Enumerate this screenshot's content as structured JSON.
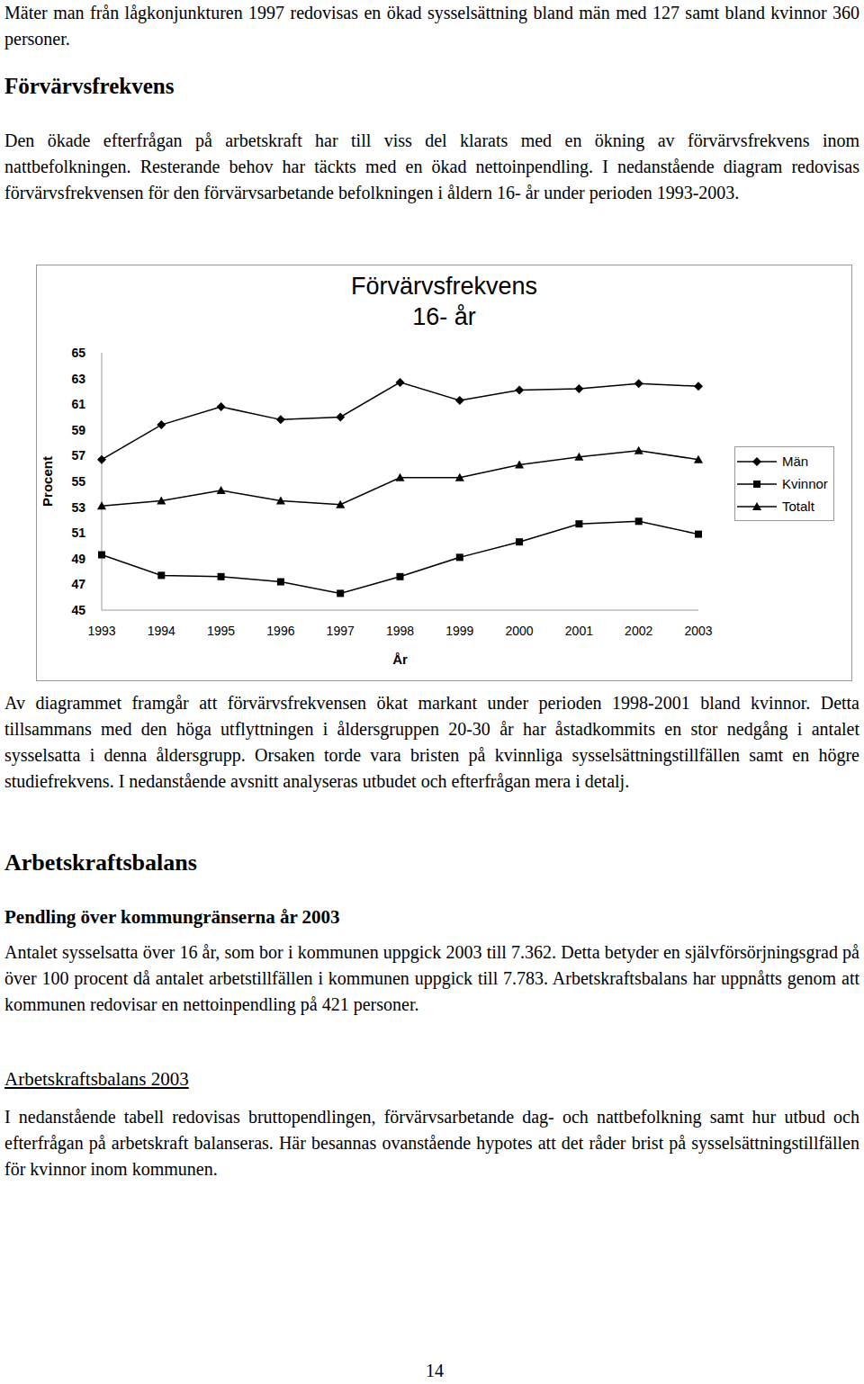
{
  "intro": "Mäter man från lågkonjunkturen 1997 redovisas en ökad sysselsättning bland män med 127 samt bland kvinnor 360 personer.",
  "section1": {
    "heading": "Förvärvsfrekvens",
    "text": "Den ökade efterfrågan på arbetskraft har till viss del klarats med en ökning av förvärvsfrekvens inom nattbefolkningen. Resterande behov har täckts med en ökad nettoinpendling. I nedanstående diagram redovisas förvärvsfrekvensen för den förvärvsarbetande befolkningen i åldern 16- år under perioden 1993-2003."
  },
  "chart_data": {
    "type": "line",
    "title": "Förvärvsfrekvens",
    "subtitle": "16- år",
    "x_label": "År",
    "y_label": "Procent",
    "categories": [
      "1993",
      "1994",
      "1995",
      "1996",
      "1997",
      "1998",
      "1999",
      "2000",
      "2001",
      "2002",
      "2003"
    ],
    "series": [
      {
        "name": "Män",
        "color": "#000000",
        "marker": "diamond",
        "line_style": "solid",
        "values": [
          56.7,
          59.4,
          60.8,
          59.8,
          60.0,
          62.7,
          61.3,
          62.1,
          62.2,
          62.6,
          62.4
        ]
      },
      {
        "name": "Kvinnor",
        "color": "#000000",
        "marker": "square",
        "line_style": "solid",
        "values": [
          49.3,
          47.7,
          47.6,
          47.2,
          46.3,
          47.6,
          49.1,
          50.3,
          51.7,
          51.9,
          50.9
        ]
      },
      {
        "name": "Totalt",
        "color": "#000000",
        "marker": "triangle",
        "line_style": "solid",
        "values": [
          53.1,
          53.5,
          54.3,
          53.5,
          53.2,
          55.3,
          55.3,
          56.3,
          56.9,
          57.4,
          56.7
        ]
      }
    ],
    "ylim": [
      45,
      65
    ],
    "yticks": [
      45,
      47,
      49,
      51,
      53,
      55,
      57,
      59,
      61,
      63,
      65
    ],
    "grid": false,
    "legend": "right"
  },
  "after_chart": "Av diagrammet framgår att förvärvsfrekvensen ökat markant under perioden 1998-2001 bland kvinnor. Detta tillsammans med den höga utflyttningen i åldersgruppen 20-30 år har åstadkommits en stor nedgång i antalet sysselsatta i denna åldersgrupp. Orsaken torde vara bristen på kvinnliga sysselsättningstillfällen samt en högre studiefrekvens. I nedanstående avsnitt analyseras utbudet och efterfrågan mera i detalj.",
  "section2": {
    "heading": "Arbetskraftsbalans"
  },
  "subsection1": {
    "heading": "Pendling över kommungränserna år 2003",
    "text": "Antalet sysselsatta över 16 år, som bor i kommunen uppgick 2003 till 7.362. Detta betyder en självförsörjningsgrad på över 100 procent då antalet arbetstillfällen i kommunen uppgick till 7.783. Arbetskraftsbalans har uppnåtts genom att kommunen redovisar en nettoinpendling på 421 personer."
  },
  "subsection2": {
    "heading": "Arbetskraftsbalans 2003",
    "text": "I nedanstående tabell redovisas bruttopendlingen, förvärvsarbetande dag- och nattbefolkning samt hur utbud och efterfrågan på arbetskraft balanseras. Här besannas ovanstående hypotes att det råder brist på sysselsättningstillfällen för kvinnor inom kommunen."
  },
  "page_number": "14"
}
